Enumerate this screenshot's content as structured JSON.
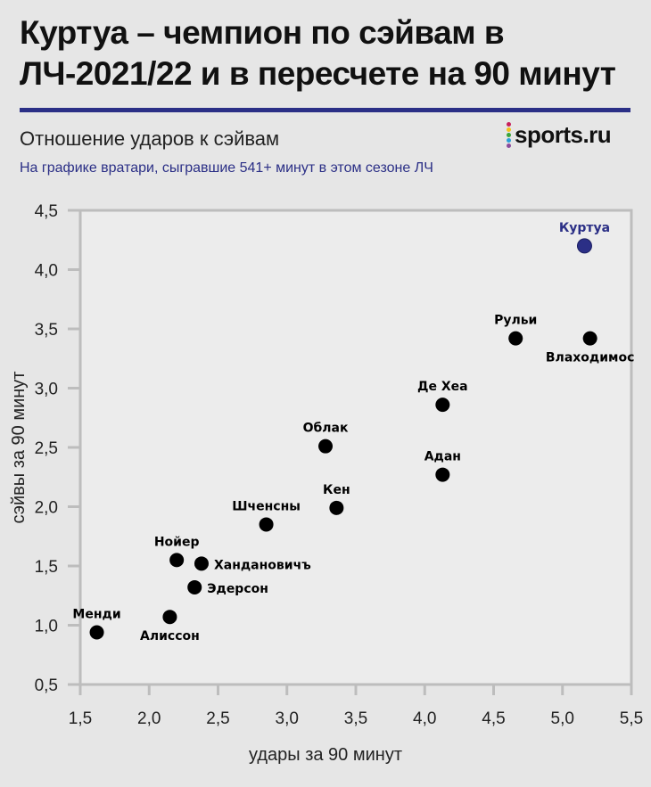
{
  "header": {
    "title_line1": "Куртуа – чемпион по сэйвам в",
    "title_line2": "ЛЧ-2021/22 и в пересчете на 90 минут",
    "subtitle": "Отношение ударов к сэйвам",
    "note": "На графике вратари, сыгравшие 541+ минут в этом сезоне ЛЧ",
    "logo": "sports.ru",
    "accent": "#2b2f86"
  },
  "chart_data": {
    "type": "scatter",
    "title": "Отношение ударов к сэйвам",
    "xlabel": "удары за 90 минут",
    "ylabel": "сэйвы за 90 минут",
    "xlim": [
      1.5,
      5.5
    ],
    "ylim": [
      0.5,
      4.5
    ],
    "xticks": [
      "1,5",
      "2,0",
      "2,5",
      "3,0",
      "3,5",
      "4,0",
      "4,5",
      "5,0",
      "5,5"
    ],
    "yticks": [
      "0,5",
      "1,0",
      "1,5",
      "2,0",
      "2,5",
      "3,0",
      "3,5",
      "4,0",
      "4,5"
    ],
    "grid": false,
    "points": [
      {
        "name": "Куртуа",
        "x": 5.16,
        "y": 4.2,
        "highlight": true,
        "label_pos": "above"
      },
      {
        "name": "Рульи",
        "x": 4.66,
        "y": 3.42,
        "label_pos": "above"
      },
      {
        "name": "Влаходимос",
        "x": 5.2,
        "y": 3.42,
        "label_pos": "below"
      },
      {
        "name": "Де Хеа",
        "x": 4.13,
        "y": 2.86,
        "label_pos": "above"
      },
      {
        "name": "Облак",
        "x": 3.28,
        "y": 2.51,
        "label_pos": "above"
      },
      {
        "name": "Адан",
        "x": 4.13,
        "y": 2.27,
        "label_pos": "above"
      },
      {
        "name": "Кен",
        "x": 3.36,
        "y": 1.99,
        "label_pos": "above"
      },
      {
        "name": "Шченсны",
        "x": 2.85,
        "y": 1.85,
        "label_pos": "above"
      },
      {
        "name": "Нойер",
        "x": 2.2,
        "y": 1.55,
        "label_pos": "above"
      },
      {
        "name": "Хандановичъ",
        "x": 2.38,
        "y": 1.52,
        "label_pos": "right"
      },
      {
        "name": "Эдерсон",
        "x": 2.33,
        "y": 1.32,
        "label_pos": "right"
      },
      {
        "name": "Алиссон",
        "x": 2.15,
        "y": 1.07,
        "label_pos": "below"
      },
      {
        "name": "Менди",
        "x": 1.62,
        "y": 0.94,
        "label_pos": "above"
      }
    ],
    "colors": {
      "default": "#000000",
      "highlight": "#2b2f86"
    }
  }
}
